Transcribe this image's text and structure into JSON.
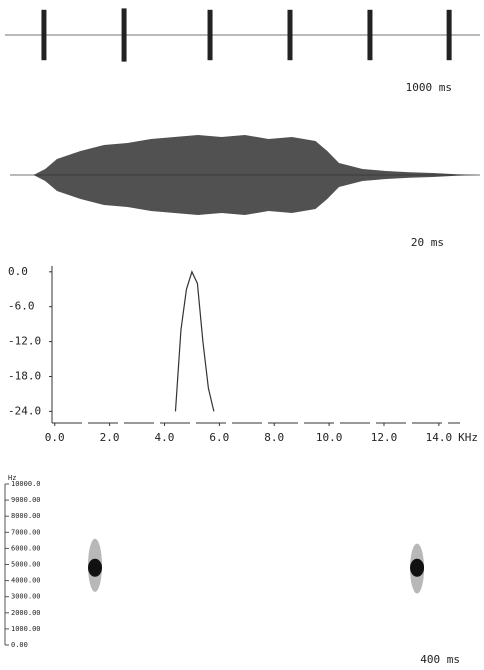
{
  "chart_data": [
    {
      "type": "pulse",
      "scale_label": "1000 ms",
      "xlim": [
        0,
        3000
      ],
      "ylim": [
        -1,
        1
      ],
      "x": [
        246,
        752,
        1295,
        1800,
        2305,
        2805
      ],
      "values": [
        0.9,
        0.95,
        0.9,
        0.9,
        0.9,
        0.9
      ],
      "color": "#222222"
    },
    {
      "type": "area",
      "scale_label": "20 ms",
      "xlim": [
        0,
        80
      ],
      "ylim": [
        -1,
        1
      ],
      "x": [
        0,
        4,
        6,
        8,
        12,
        16,
        20,
        24,
        28,
        32,
        36,
        40,
        44,
        48,
        52,
        54,
        56,
        60,
        64,
        68,
        72,
        76,
        80
      ],
      "values": [
        0,
        0,
        0.15,
        0.4,
        0.6,
        0.75,
        0.8,
        0.9,
        0.95,
        1,
        0.95,
        1,
        0.9,
        0.95,
        0.85,
        0.6,
        0.3,
        0.15,
        0.1,
        0.07,
        0.05,
        0.02,
        0
      ],
      "color": "#333333"
    },
    {
      "type": "line",
      "x_unit": "KHz",
      "xlim": [
        -0.1,
        15.5
      ],
      "ylim": [
        -26,
        1
      ],
      "xticks": [
        {
          "value": 0,
          "label": "0.0"
        },
        {
          "value": 2,
          "label": "2.0"
        },
        {
          "value": 4,
          "label": "4.0"
        },
        {
          "value": 6,
          "label": "6.0"
        },
        {
          "value": 8,
          "label": "8.0"
        },
        {
          "value": 10,
          "label": "10.0"
        },
        {
          "value": 12,
          "label": "12.0"
        },
        {
          "value": 14,
          "label": "14.0"
        }
      ],
      "yticks": [
        {
          "value": 0,
          "label": "0.0"
        },
        {
          "value": -6,
          "label": "-6.0"
        },
        {
          "value": -12,
          "label": "-12.0"
        },
        {
          "value": -18,
          "label": "-18.0"
        },
        {
          "value": -24,
          "label": "-24.0"
        }
      ],
      "x": [
        4.4,
        4.6,
        4.8,
        5.0,
        5.2,
        5.4,
        5.6,
        5.8
      ],
      "values": [
        -24,
        -10,
        -3,
        0,
        -2,
        -12,
        -20,
        -24
      ],
      "color": "#333333"
    },
    {
      "type": "spectrogram",
      "y_unit": "Hz",
      "scale_label": "400 ms",
      "xlim": [
        0,
        2000
      ],
      "ylim": [
        0,
        10000
      ],
      "yticks": [
        {
          "value": 10000,
          "label": "10000.0"
        },
        {
          "value": 9000,
          "label": "9000.00"
        },
        {
          "value": 8000,
          "label": "8000.00"
        },
        {
          "value": 7000,
          "label": "7000.00"
        },
        {
          "value": 6000,
          "label": "6000.00"
        },
        {
          "value": 5000,
          "label": "5000.00"
        },
        {
          "value": 4000,
          "label": "4000.00"
        },
        {
          "value": 3000,
          "label": "3000.00"
        },
        {
          "value": 2000,
          "label": "2000.00"
        },
        {
          "value": 1000,
          "label": "1000.00"
        },
        {
          "value": 0,
          "label": "0.00"
        }
      ],
      "x": [
        379,
        1735
      ],
      "y_low": [
        3300,
        3200
      ],
      "y_high": [
        6600,
        6300
      ],
      "values": [
        4800,
        4800
      ],
      "color": "#111111"
    }
  ]
}
